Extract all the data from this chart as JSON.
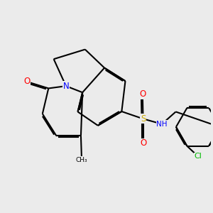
{
  "bg": "#ebebeb",
  "bond_color": "#000000",
  "N_color": "#0000ff",
  "O_color": "#ff0000",
  "S_color": "#ccaa00",
  "Cl_color": "#00bb00",
  "N_label": "N",
  "O_label": "O",
  "S_label": "S",
  "NH_label": "NH",
  "Cl_label": "Cl",
  "Me_label": "CH₃",
  "H_label": "H"
}
